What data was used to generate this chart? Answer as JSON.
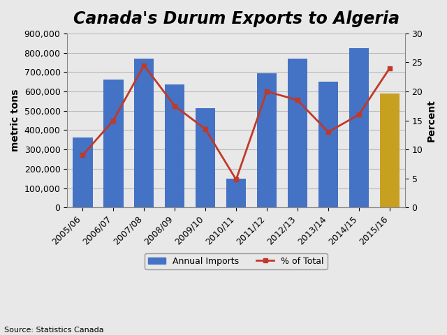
{
  "title": "Canada's Durum Exports to Algeria",
  "categories": [
    "2005/06",
    "2006/07",
    "2007/08",
    "2008/09",
    "2009/10",
    "2010/11",
    "2011/12",
    "2012/13",
    "2013/14",
    "2014/15",
    "2015/16"
  ],
  "bar_values": [
    362000,
    660000,
    768000,
    637000,
    515000,
    148000,
    695000,
    768000,
    652000,
    825000,
    590000
  ],
  "bar_colors": [
    "#4472C4",
    "#4472C4",
    "#4472C4",
    "#4472C4",
    "#4472C4",
    "#4472C4",
    "#4472C4",
    "#4472C4",
    "#4472C4",
    "#4472C4",
    "#C8A020"
  ],
  "line_values": [
    9.0,
    15.0,
    24.5,
    17.5,
    13.5,
    4.8,
    20.0,
    18.5,
    13.0,
    16.0,
    24.0
  ],
  "line_color": "#C0392B",
  "ylabel_left": "metric tons",
  "ylabel_right": "Percent",
  "ylim_left": [
    0,
    900000
  ],
  "ylim_right": [
    0,
    30
  ],
  "yticks_left": [
    0,
    100000,
    200000,
    300000,
    400000,
    500000,
    600000,
    700000,
    800000,
    900000
  ],
  "yticks_right": [
    0,
    5,
    10,
    15,
    20,
    25,
    30
  ],
  "source_text": "Source: Statistics Canada",
  "legend_bar_label": "Annual Imports",
  "legend_line_label": "% of Total",
  "background_color": "#E8E8E8",
  "plot_background_color": "#E8E8E8",
  "title_fontsize": 17,
  "axis_label_fontsize": 10,
  "tick_fontsize": 9,
  "legend_fontsize": 9,
  "source_fontsize": 8,
  "bar_blue_color": "#4472C4",
  "bar_yellow_color": "#C8A020",
  "grid_color": "#BBBBBB",
  "grid_linewidth": 0.8
}
